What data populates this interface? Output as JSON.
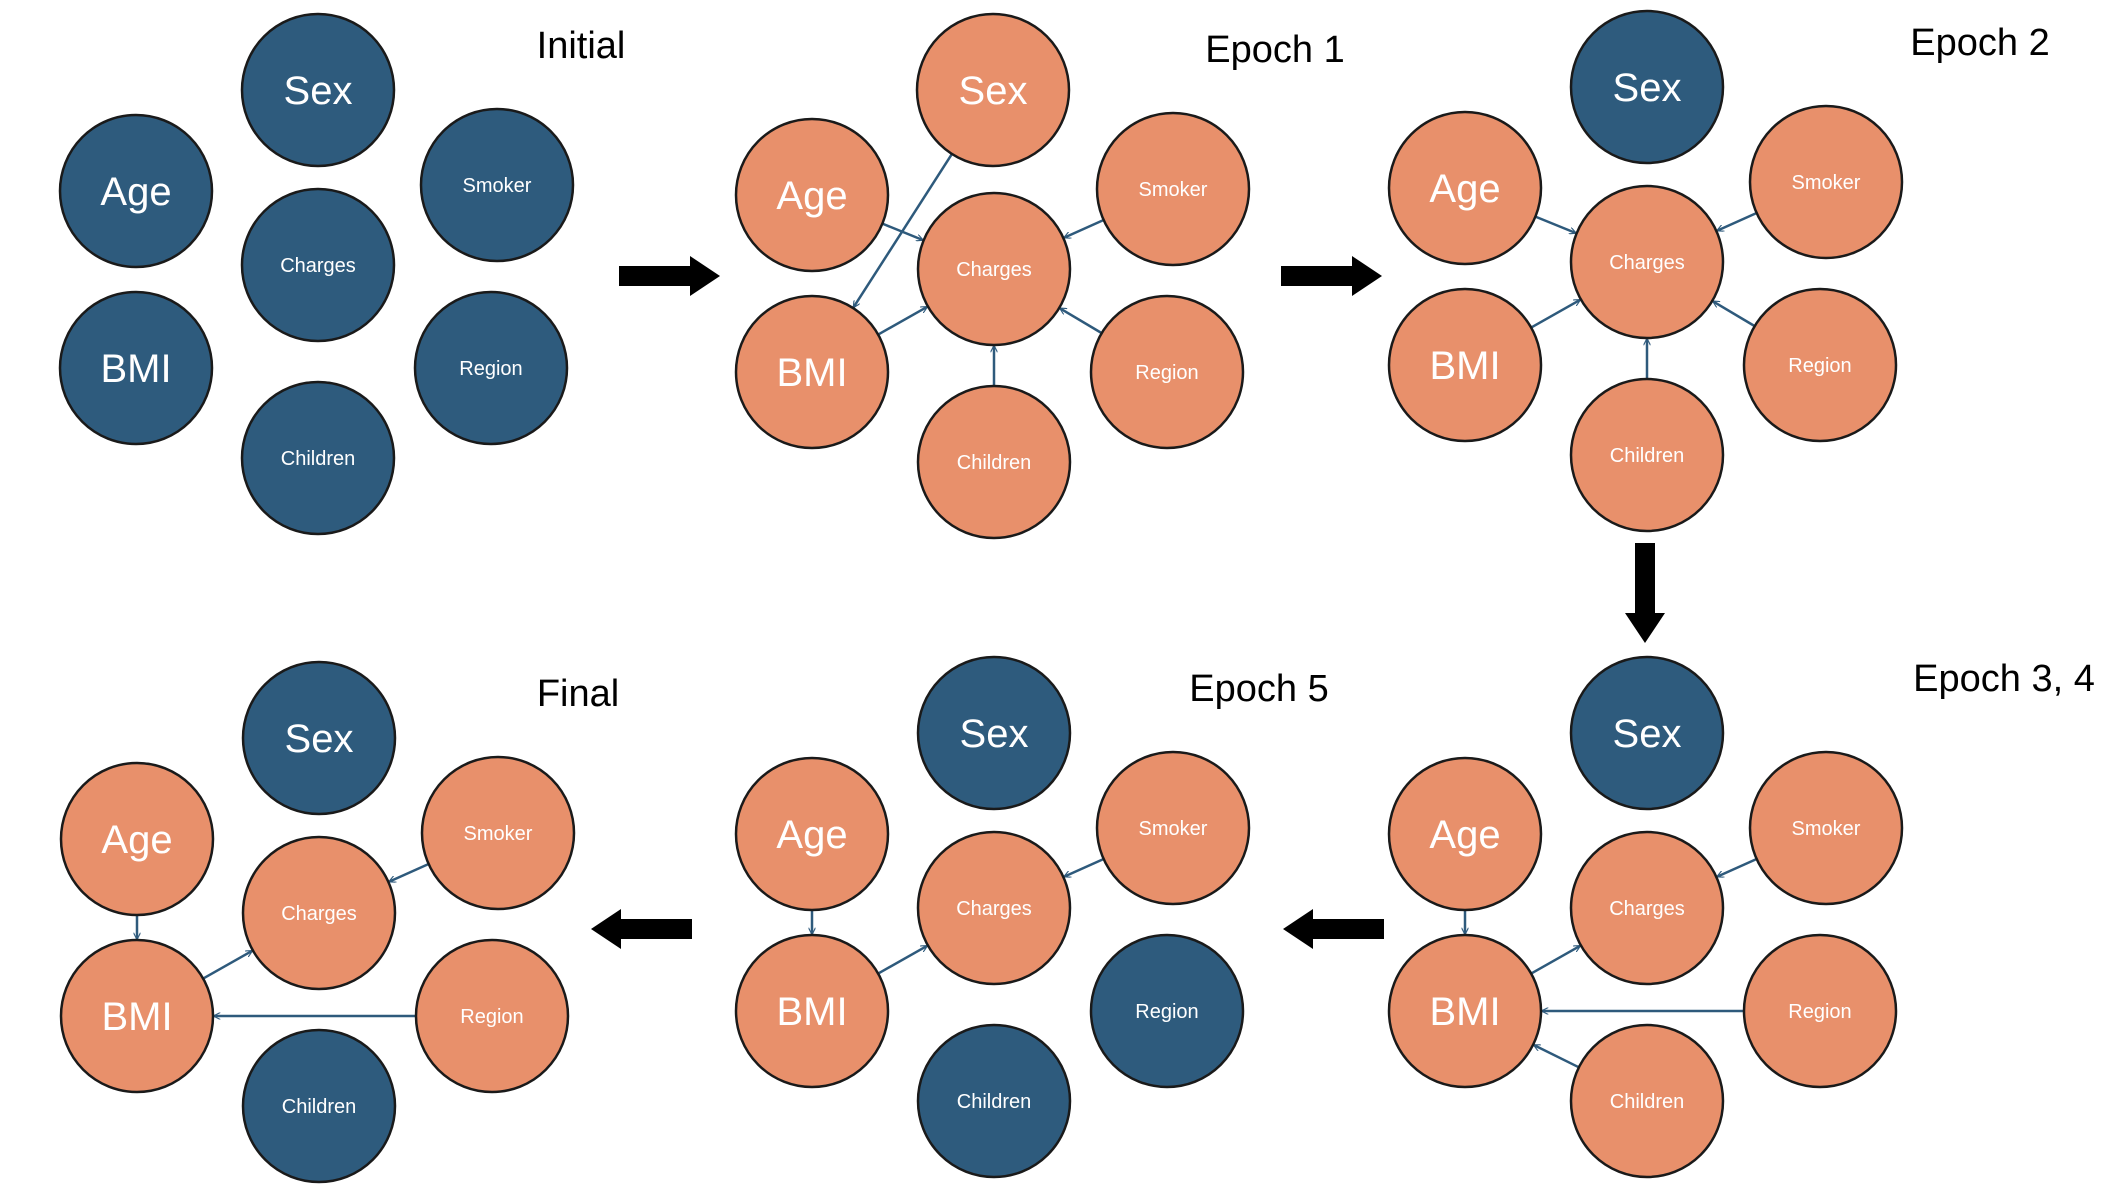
{
  "colors": {
    "inactive": "#2e5b7d",
    "active": "#e8906b",
    "edge": "#2e5a7c",
    "flow_arrow": "#000000"
  },
  "panels": [
    {
      "id": "initial",
      "title": "Initial",
      "nodes": [
        {
          "id": "sex",
          "label": "Sex",
          "state": "inactive"
        },
        {
          "id": "age",
          "label": "Age",
          "state": "inactive"
        },
        {
          "id": "smoker",
          "label": "Smoker",
          "state": "inactive"
        },
        {
          "id": "charges",
          "label": "Charges",
          "state": "inactive"
        },
        {
          "id": "bmi",
          "label": "BMI",
          "state": "inactive"
        },
        {
          "id": "region",
          "label": "Region",
          "state": "inactive"
        },
        {
          "id": "children",
          "label": "Children",
          "state": "inactive"
        }
      ],
      "edges": []
    },
    {
      "id": "epoch1",
      "title": "Epoch 1",
      "nodes": [
        {
          "id": "sex",
          "label": "Sex",
          "state": "active"
        },
        {
          "id": "age",
          "label": "Age",
          "state": "active"
        },
        {
          "id": "smoker",
          "label": "Smoker",
          "state": "active"
        },
        {
          "id": "charges",
          "label": "Charges",
          "state": "active"
        },
        {
          "id": "bmi",
          "label": "BMI",
          "state": "active"
        },
        {
          "id": "region",
          "label": "Region",
          "state": "active"
        },
        {
          "id": "children",
          "label": "Children",
          "state": "active"
        }
      ],
      "edges": [
        {
          "from": "age",
          "to": "charges"
        },
        {
          "from": "smoker",
          "to": "charges"
        },
        {
          "from": "region",
          "to": "charges"
        },
        {
          "from": "children",
          "to": "charges"
        },
        {
          "from": "bmi",
          "to": "charges"
        },
        {
          "from": "sex",
          "to": "bmi"
        }
      ]
    },
    {
      "id": "epoch2",
      "title": "Epoch 2",
      "nodes": [
        {
          "id": "sex",
          "label": "Sex",
          "state": "inactive"
        },
        {
          "id": "age",
          "label": "Age",
          "state": "active"
        },
        {
          "id": "smoker",
          "label": "Smoker",
          "state": "active"
        },
        {
          "id": "charges",
          "label": "Charges",
          "state": "active"
        },
        {
          "id": "bmi",
          "label": "BMI",
          "state": "active"
        },
        {
          "id": "region",
          "label": "Region",
          "state": "active"
        },
        {
          "id": "children",
          "label": "Children",
          "state": "active"
        }
      ],
      "edges": [
        {
          "from": "age",
          "to": "charges"
        },
        {
          "from": "smoker",
          "to": "charges"
        },
        {
          "from": "bmi",
          "to": "charges"
        },
        {
          "from": "region",
          "to": "charges"
        },
        {
          "from": "children",
          "to": "charges"
        }
      ]
    },
    {
      "id": "epoch34",
      "title": "Epoch 3, 4",
      "nodes": [
        {
          "id": "sex",
          "label": "Sex",
          "state": "inactive"
        },
        {
          "id": "age",
          "label": "Age",
          "state": "active"
        },
        {
          "id": "smoker",
          "label": "Smoker",
          "state": "active"
        },
        {
          "id": "charges",
          "label": "Charges",
          "state": "active"
        },
        {
          "id": "bmi",
          "label": "BMI",
          "state": "active"
        },
        {
          "id": "region",
          "label": "Region",
          "state": "active"
        },
        {
          "id": "children",
          "label": "Children",
          "state": "active"
        }
      ],
      "edges": [
        {
          "from": "age",
          "to": "bmi"
        },
        {
          "from": "bmi",
          "to": "charges"
        },
        {
          "from": "smoker",
          "to": "charges"
        },
        {
          "from": "region",
          "to": "bmi"
        },
        {
          "from": "children",
          "to": "bmi"
        }
      ]
    },
    {
      "id": "epoch5",
      "title": "Epoch 5",
      "nodes": [
        {
          "id": "sex",
          "label": "Sex",
          "state": "inactive"
        },
        {
          "id": "age",
          "label": "Age",
          "state": "active"
        },
        {
          "id": "smoker",
          "label": "Smoker",
          "state": "active"
        },
        {
          "id": "charges",
          "label": "Charges",
          "state": "active"
        },
        {
          "id": "bmi",
          "label": "BMI",
          "state": "active"
        },
        {
          "id": "region",
          "label": "Region",
          "state": "inactive"
        },
        {
          "id": "children",
          "label": "Children",
          "state": "inactive"
        }
      ],
      "edges": [
        {
          "from": "age",
          "to": "bmi"
        },
        {
          "from": "bmi",
          "to": "charges"
        },
        {
          "from": "smoker",
          "to": "charges"
        }
      ]
    },
    {
      "id": "final",
      "title": "Final",
      "nodes": [
        {
          "id": "sex",
          "label": "Sex",
          "state": "inactive"
        },
        {
          "id": "age",
          "label": "Age",
          "state": "active"
        },
        {
          "id": "smoker",
          "label": "Smoker",
          "state": "active"
        },
        {
          "id": "charges",
          "label": "Charges",
          "state": "active"
        },
        {
          "id": "bmi",
          "label": "BMI",
          "state": "active"
        },
        {
          "id": "region",
          "label": "Region",
          "state": "active"
        },
        {
          "id": "children",
          "label": "Children",
          "state": "inactive"
        }
      ],
      "edges": [
        {
          "from": "age",
          "to": "bmi"
        },
        {
          "from": "bmi",
          "to": "charges"
        },
        {
          "from": "smoker",
          "to": "charges"
        },
        {
          "from": "region",
          "to": "bmi"
        }
      ]
    }
  ],
  "flow": [
    {
      "from": "initial",
      "to": "epoch1"
    },
    {
      "from": "epoch1",
      "to": "epoch2"
    },
    {
      "from": "epoch2",
      "to": "epoch34"
    },
    {
      "from": "epoch34",
      "to": "epoch5"
    },
    {
      "from": "epoch5",
      "to": "final"
    }
  ]
}
